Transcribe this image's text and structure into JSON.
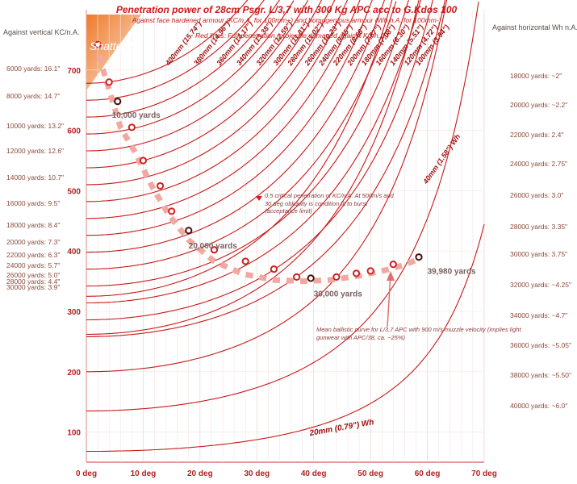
{
  "title": "Penetration power of 28cm Psgr. L/3,7 with 300 Kg APC acc to G.Kdos 100",
  "subtitle": "Against face hardened armour (KC/n.A. for 100mm+)  and homogenious armour (Wh n.A. for  100mm-)",
  "red_lines_note": "Red lines: Full penetration (projectile damaged against KC/n.A.)",
  "shatter_label": "Shatter?",
  "left_header": "Against vertical KC/n.A.",
  "right_header": "Against horizontal Wh n.A.",
  "left_table": [
    "6000 yards: 16.1\"",
    "8000 yards: 14.7\"",
    "10000 yards: 13.2\"",
    "12000 yards: 12.6\"",
    "14000 yards: 10.7\"",
    "16000 yards: 9.5\"",
    "18000 yards: 8.4\"",
    "20000 yards: 7.3\"",
    "22000 yards: 6.3\"",
    "24000 yards: 5.7\"",
    "26000 yards: 5.0\"",
    "28000 yards: 4.4\"",
    "30000 yards: 3.9\""
  ],
  "right_table": [
    "18000 yards: ~2\"",
    "20000 yards: ~2.2\"",
    "22000 yards: 2.4\"",
    "24000 yards: 2.75\"",
    "26000 yards: 3.0\"",
    "28000 yards: 3.35\"",
    "30000 yards: 3.75\"",
    "32000 yards: ~4.25\"",
    "34000 yards: ~4.7\"",
    "36000 yards: ~5.05\"",
    "38000 yards: ~5.50\"",
    "40000 yards: ~6.0\""
  ],
  "annotation_half": "0.5 critical penetration of KC/n.A. At 500m/s and 30 deg obliquity is condition fit to burst (acceptance limit)",
  "annotation_mean": "Mean ballistic curve for  L/3,7 APC with 900 m/s muzzle velocity (implies light gunwear with APC/38, ca. ~25%)",
  "chart_data": {
    "type": "line",
    "xlabel": "",
    "ylabel": "",
    "xlim": [
      0,
      70
    ],
    "ylim": [
      50,
      800
    ],
    "x_ticks": [
      "0 deg",
      "10 deg",
      "20 deg",
      "30 deg",
      "40 deg",
      "50 deg",
      "60 deg",
      "70 deg"
    ],
    "y_ticks": [
      "100",
      "200",
      "300",
      "400",
      "500",
      "600",
      "700"
    ],
    "kc_curves": [
      {
        "label": "400mm (15.74\")",
        "v0": 678
      },
      {
        "label": "380mm (14.96\")",
        "v0": 650
      },
      {
        "label": "360mm (14.17\")",
        "v0": 622
      },
      {
        "label": "340mm (13.38\")",
        "v0": 594
      },
      {
        "label": "320mm (12.59\")",
        "v0": 566
      },
      {
        "label": "300mm (11.81\")",
        "v0": 538
      },
      {
        "label": "280mm (11.02\")",
        "v0": 510
      },
      {
        "label": "260mm (10.23\")",
        "v0": 482
      },
      {
        "label": "240mm (9.45\")",
        "v0": 454
      },
      {
        "label": "220mm (8.66\")",
        "v0": 426
      },
      {
        "label": "200mm (7.87\")",
        "v0": 398
      },
      {
        "label": "180mm (7.08\")",
        "v0": 370
      },
      {
        "label": "160mm (6.30\")",
        "v0": 342
      },
      {
        "label": "140mm (5.51\")",
        "v0": 314
      },
      {
        "label": "120mm (4.72\")",
        "v0": 286
      },
      {
        "label": "100mm (3.94\")",
        "v0": 258
      }
    ],
    "wh_curves": [
      {
        "label": "100mm (3.94\") Wh",
        "v0": 325
      },
      {
        "label": "80mm (3.15\") Wh",
        "v0": 262
      },
      {
        "label": "60mm (2.36\") Wh",
        "v0": 200
      },
      {
        "label": "40mm (1.58\") Wh",
        "v0": 135
      },
      {
        "label": "20mm (0.79\") Wh",
        "v0": 68
      }
    ],
    "mean_ballistic_curve": {
      "x": [
        1.5,
        3.5,
        6,
        8.5,
        11.5,
        14.5,
        18,
        22.5,
        27.5,
        33,
        38,
        43,
        48,
        52.5,
        56,
        58
      ],
      "y": [
        745,
        683,
        605,
        565,
        508,
        460,
        418,
        383,
        362,
        352,
        350,
        352,
        359,
        368,
        377,
        385
      ]
    },
    "impact_points": {
      "x": [
        2,
        4,
        5.5,
        8,
        10,
        13,
        15,
        18,
        22.5,
        28,
        33,
        37,
        39.5,
        44,
        47.5,
        50,
        54,
        58.5
      ],
      "y": [
        742,
        680,
        648,
        605,
        550,
        508,
        466,
        434,
        402,
        383,
        370,
        357,
        355,
        357,
        363,
        367,
        378,
        390
      ]
    },
    "impact_points_dark": {
      "x": [
        5.5,
        18,
        39.5,
        58.5
      ],
      "y": [
        648,
        434,
        355,
        390
      ]
    },
    "range_labels": [
      {
        "text": "10,000 yards",
        "x": 4.5,
        "y": 621
      },
      {
        "text": "20,000 yards",
        "x": 18,
        "y": 404
      },
      {
        "text": "30,000 yards",
        "x": 40,
        "y": 325
      },
      {
        "text": "39,980 yards",
        "x": 60,
        "y": 362
      }
    ]
  }
}
